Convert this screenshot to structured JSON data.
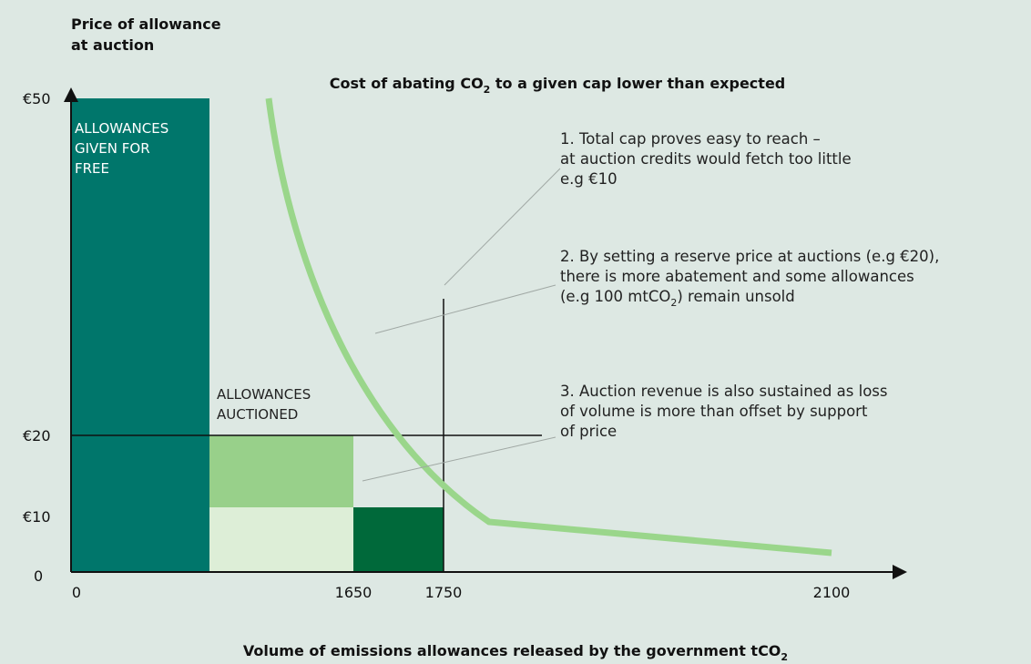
{
  "y_axis_label": [
    "Price of allowance",
    "at auction"
  ],
  "title": {
    "text": "Cost of abating CO",
    "subscript": "2",
    "after": " to a given cap lower than expected"
  },
  "y_ticks": [
    "€50",
    "€20",
    "€10",
    "0"
  ],
  "x_ticks": [
    "0",
    "1650",
    "1750",
    "2100"
  ],
  "free_label": [
    "ALLOWANCES",
    "GIVEN FOR",
    "FREE"
  ],
  "auctioned_label": [
    "ALLOWANCES",
    "AUCTIONED"
  ],
  "note1": [
    "1. Total cap proves easy to reach –",
    "at auction credits would fetch too little",
    "e.g €10"
  ],
  "note2": {
    "lines": [
      "2. By setting a reserve price at auctions (e.g €20),",
      "there is more abatement and some allowances"
    ],
    "last": {
      "text": "(e.g 100 mtCO",
      "subscript": "2",
      "after": ") remain unsold"
    }
  },
  "note3": [
    "3. Auction revenue is also sustained as loss",
    "of volume is more than offset by support",
    "of price"
  ],
  "x_axis_label": {
    "text": "Volume of emissions allowances released by the government tCO",
    "subscript": "2"
  }
}
